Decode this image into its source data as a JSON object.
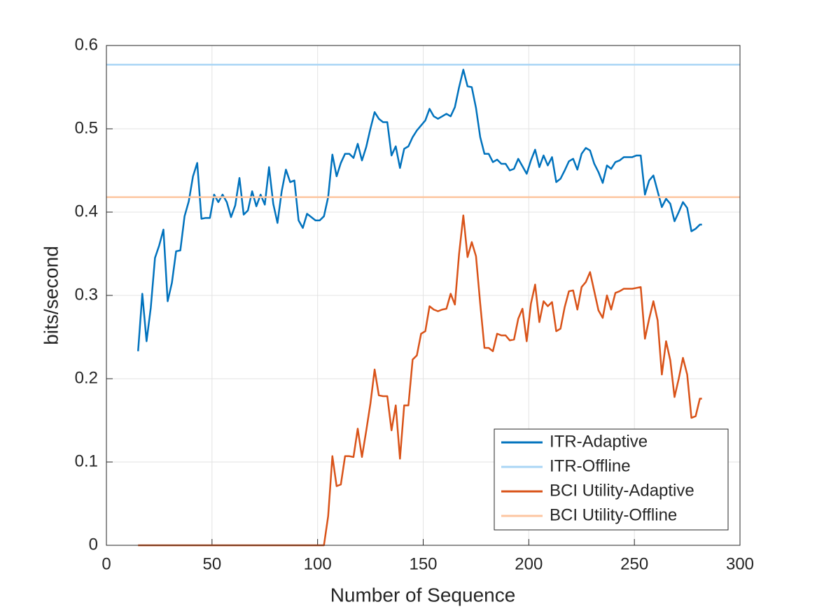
{
  "chart_data": {
    "type": "line",
    "xlabel": "Number of Sequence",
    "ylabel": "bits/second",
    "xlim": [
      0,
      300
    ],
    "ylim": [
      0,
      0.6
    ],
    "xticks": [
      0,
      50,
      100,
      150,
      200,
      250,
      300
    ],
    "yticks": [
      0,
      0.1,
      0.2,
      0.3,
      0.4,
      0.5,
      0.6
    ],
    "grid": true,
    "legend": "lower right",
    "series": [
      {
        "name": "ITR-Adaptive",
        "color": "#0072bd",
        "x": [
          15,
          17,
          19,
          21,
          23,
          25,
          27,
          29,
          31,
          33,
          35,
          37,
          39,
          41,
          43,
          45,
          47,
          49,
          51,
          53,
          55,
          57,
          59,
          61,
          63,
          65,
          67,
          69,
          71,
          73,
          75,
          77,
          79,
          81,
          83,
          85,
          87,
          89,
          91,
          93,
          95,
          97,
          99,
          101,
          103,
          105,
          107,
          109,
          111,
          113,
          115,
          117,
          119,
          121,
          123,
          125,
          127,
          129,
          131,
          133,
          135,
          137,
          139,
          141,
          143,
          145,
          147,
          149,
          151,
          153,
          155,
          157,
          159,
          161,
          163,
          165,
          167,
          169,
          171,
          173,
          175,
          177,
          179,
          181,
          183,
          185,
          187,
          189,
          191,
          193,
          195,
          197,
          199,
          201,
          203,
          205,
          207,
          209,
          211,
          213,
          215,
          217,
          219,
          221,
          223,
          225,
          227,
          229,
          231,
          233,
          235,
          237,
          239,
          241,
          243,
          245,
          247,
          249,
          251,
          253,
          255,
          257,
          259,
          261,
          263,
          265,
          267,
          269,
          271,
          273,
          275,
          277,
          279,
          281,
          282
        ],
        "values": [
          0.233,
          0.302,
          0.245,
          0.285,
          0.345,
          0.36,
          0.379,
          0.293,
          0.315,
          0.353,
          0.354,
          0.395,
          0.413,
          0.443,
          0.459,
          0.392,
          0.393,
          0.393,
          0.421,
          0.412,
          0.421,
          0.412,
          0.394,
          0.408,
          0.441,
          0.397,
          0.402,
          0.425,
          0.407,
          0.421,
          0.409,
          0.454,
          0.41,
          0.387,
          0.425,
          0.451,
          0.436,
          0.438,
          0.39,
          0.381,
          0.398,
          0.394,
          0.39,
          0.39,
          0.395,
          0.418,
          0.469,
          0.443,
          0.459,
          0.47,
          0.47,
          0.465,
          0.482,
          0.462,
          0.478,
          0.5,
          0.52,
          0.512,
          0.508,
          0.508,
          0.468,
          0.479,
          0.453,
          0.476,
          0.479,
          0.49,
          0.498,
          0.504,
          0.51,
          0.524,
          0.515,
          0.512,
          0.515,
          0.518,
          0.515,
          0.526,
          0.55,
          0.571,
          0.551,
          0.55,
          0.525,
          0.49,
          0.47,
          0.47,
          0.46,
          0.463,
          0.458,
          0.458,
          0.45,
          0.452,
          0.464,
          0.455,
          0.446,
          0.462,
          0.475,
          0.454,
          0.468,
          0.456,
          0.466,
          0.436,
          0.44,
          0.45,
          0.461,
          0.464,
          0.451,
          0.47,
          0.477,
          0.474,
          0.458,
          0.448,
          0.435,
          0.456,
          0.452,
          0.46,
          0.462,
          0.466,
          0.466,
          0.466,
          0.468,
          0.468,
          0.421,
          0.438,
          0.444,
          0.425,
          0.406,
          0.416,
          0.41,
          0.389,
          0.4,
          0.412,
          0.405,
          0.377,
          0.38,
          0.385,
          0.385
        ]
      },
      {
        "name": "ITR-Offline",
        "color": "#a9d5f5",
        "x": [
          0,
          300
        ],
        "values": [
          0.577,
          0.577
        ]
      },
      {
        "name": "BCI Utility-Adaptive",
        "color": "#d95319",
        "x": [
          15,
          17,
          19,
          21,
          23,
          25,
          27,
          29,
          31,
          33,
          35,
          37,
          39,
          41,
          43,
          45,
          47,
          49,
          51,
          53,
          55,
          57,
          59,
          61,
          63,
          65,
          67,
          69,
          71,
          73,
          75,
          77,
          79,
          81,
          83,
          85,
          87,
          89,
          91,
          93,
          95,
          97,
          99,
          101,
          103,
          105,
          107,
          109,
          111,
          113,
          115,
          117,
          119,
          121,
          123,
          125,
          127,
          129,
          131,
          133,
          135,
          137,
          139,
          141,
          143,
          145,
          147,
          149,
          151,
          153,
          155,
          157,
          159,
          161,
          163,
          165,
          167,
          169,
          171,
          173,
          175,
          177,
          179,
          181,
          183,
          185,
          187,
          189,
          191,
          193,
          195,
          197,
          199,
          201,
          203,
          205,
          207,
          209,
          211,
          213,
          215,
          217,
          219,
          221,
          223,
          225,
          227,
          229,
          231,
          233,
          235,
          237,
          239,
          241,
          243,
          245,
          247,
          249,
          251,
          253,
          255,
          257,
          259,
          261,
          263,
          265,
          267,
          269,
          271,
          273,
          275,
          277,
          279,
          281,
          282
        ],
        "values": [
          0,
          0,
          0,
          0,
          0,
          0,
          0,
          0,
          0,
          0,
          0,
          0,
          0,
          0,
          0,
          0,
          0,
          0,
          0,
          0,
          0,
          0,
          0,
          0,
          0,
          0,
          0,
          0,
          0,
          0,
          0,
          0,
          0,
          0,
          0,
          0,
          0,
          0,
          0,
          0,
          0,
          0,
          0,
          0,
          0,
          0.035,
          0.107,
          0.071,
          0.073,
          0.107,
          0.107,
          0.106,
          0.14,
          0.106,
          0.137,
          0.17,
          0.211,
          0.18,
          0.179,
          0.179,
          0.138,
          0.168,
          0.104,
          0.168,
          0.168,
          0.223,
          0.228,
          0.254,
          0.257,
          0.287,
          0.283,
          0.281,
          0.283,
          0.284,
          0.302,
          0.289,
          0.35,
          0.396,
          0.346,
          0.364,
          0.347,
          0.29,
          0.237,
          0.237,
          0.233,
          0.254,
          0.252,
          0.252,
          0.246,
          0.247,
          0.272,
          0.284,
          0.245,
          0.29,
          0.313,
          0.268,
          0.293,
          0.287,
          0.292,
          0.257,
          0.26,
          0.286,
          0.305,
          0.306,
          0.283,
          0.31,
          0.316,
          0.328,
          0.305,
          0.282,
          0.273,
          0.3,
          0.283,
          0.303,
          0.305,
          0.308,
          0.308,
          0.308,
          0.309,
          0.31,
          0.248,
          0.272,
          0.293,
          0.27,
          0.205,
          0.245,
          0.222,
          0.178,
          0.2,
          0.225,
          0.205,
          0.153,
          0.155,
          0.176,
          0.176
        ]
      },
      {
        "name": "BCI Utility-Offline",
        "color": "#fdc6a0",
        "x": [
          0,
          300
        ],
        "values": [
          0.418,
          0.418
        ]
      }
    ]
  }
}
